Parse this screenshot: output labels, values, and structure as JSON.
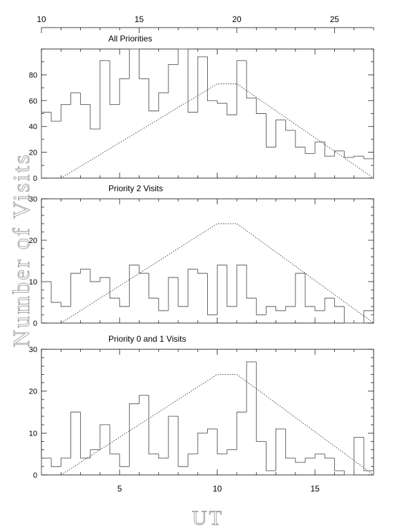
{
  "figure": {
    "ylabel": "Number of Visits",
    "xlabel": "UT",
    "top_axis_ticks": [
      "10",
      "15",
      "20",
      "25"
    ]
  },
  "chart_data": [
    {
      "type": "histogram",
      "title": "All Priorities",
      "bin_edges": [
        1,
        1.5,
        2,
        2.5,
        3,
        3.5,
        4,
        4.5,
        5,
        5.5,
        6,
        6.5,
        7,
        7.5,
        8,
        8.5,
        9,
        9.5,
        10,
        10.5,
        11,
        11.5,
        12,
        12.5,
        13,
        13.5,
        14,
        14.5,
        15,
        15.5,
        16,
        16.5,
        17,
        17.5,
        18
      ],
      "values": [
        51,
        44,
        57,
        66,
        57,
        38,
        91,
        57,
        77,
        100,
        77,
        52,
        66,
        88,
        100,
        51,
        94,
        60,
        58,
        49,
        91,
        62,
        50,
        24,
        45,
        37,
        24,
        19,
        28,
        17,
        21,
        16,
        17,
        15
      ],
      "envelope": {
        "x": [
          2,
          10,
          11,
          18
        ],
        "y": [
          0,
          73,
          73,
          0
        ]
      },
      "xlim": [
        1,
        18
      ],
      "ylim": [
        0,
        100
      ],
      "yticks": [
        "0",
        "20",
        "40",
        "60",
        "80"
      ]
    },
    {
      "type": "histogram",
      "title": "Priority 2 Visits",
      "bin_edges": [
        1,
        1.5,
        2,
        2.5,
        3,
        3.5,
        4,
        4.5,
        5,
        5.5,
        6,
        6.5,
        7,
        7.5,
        8,
        8.5,
        9,
        9.5,
        10,
        10.5,
        11,
        11.5,
        12,
        12.5,
        13,
        13.5,
        14,
        14.5,
        15,
        15.5,
        16,
        16.5,
        17,
        17.5,
        18
      ],
      "values": [
        10,
        5,
        4,
        12,
        13,
        10,
        11,
        6,
        4,
        14,
        12,
        6,
        3,
        11,
        4,
        13,
        12,
        2,
        14,
        4,
        14,
        6,
        2,
        4,
        3,
        4,
        12,
        4,
        3,
        6,
        4,
        0,
        0,
        3
      ],
      "envelope": {
        "x": [
          2,
          10,
          11,
          18
        ],
        "y": [
          0,
          24,
          24,
          0
        ]
      },
      "xlim": [
        1,
        18
      ],
      "ylim": [
        0,
        30
      ],
      "yticks": [
        "0",
        "10",
        "20",
        "30"
      ]
    },
    {
      "type": "histogram",
      "title": "Priority 0 and 1 Visits",
      "bin_edges": [
        1,
        1.5,
        2,
        2.5,
        3,
        3.5,
        4,
        4.5,
        5,
        5.5,
        6,
        6.5,
        7,
        7.5,
        8,
        8.5,
        9,
        9.5,
        10,
        10.5,
        11,
        11.5,
        12,
        12.5,
        13,
        13.5,
        14,
        14.5,
        15,
        15.5,
        16,
        16.5,
        17,
        17.5,
        18
      ],
      "values": [
        4,
        2,
        4,
        15,
        4,
        6,
        12,
        5,
        2,
        17,
        19,
        5,
        4,
        14,
        2,
        5,
        10,
        11,
        5,
        6,
        15,
        27,
        8,
        1,
        11,
        4,
        3,
        4,
        5,
        4,
        1,
        0,
        9,
        1
      ],
      "envelope": {
        "x": [
          2,
          10,
          11,
          18
        ],
        "y": [
          0,
          24,
          24,
          0
        ]
      },
      "xlim": [
        1,
        18
      ],
      "ylim": [
        0,
        30
      ],
      "yticks": [
        "0",
        "10",
        "20",
        "30"
      ],
      "xticks": [
        "5",
        "10",
        "15"
      ]
    }
  ]
}
